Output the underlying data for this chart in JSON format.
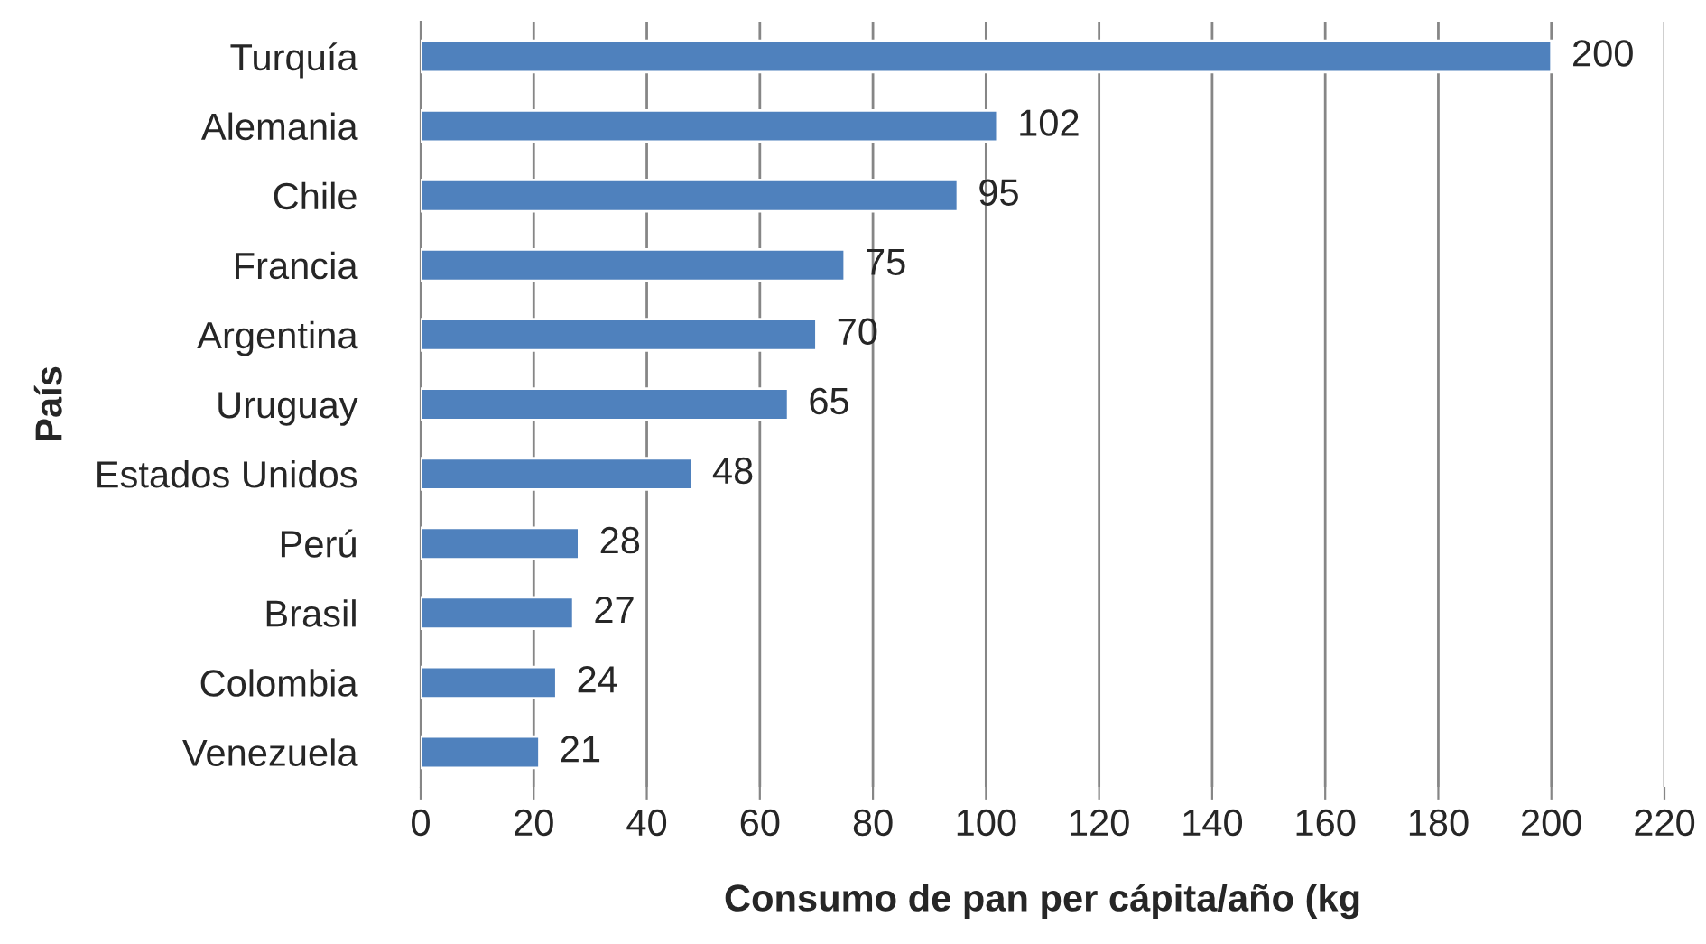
{
  "chart_data": {
    "type": "bar",
    "orientation": "horizontal",
    "xlabel": "Consumo de pan per cápita/año (kg",
    "ylabel": "País",
    "categories": [
      "Turquía",
      "Alemania",
      "Chile",
      "Francia",
      "Argentina",
      "Uruguay",
      "Estados Unidos",
      "Perú",
      "Brasil",
      "Colombia",
      "Venezuela"
    ],
    "values": [
      200,
      102,
      95,
      75,
      70,
      65,
      48,
      28,
      27,
      24,
      21
    ],
    "color": "#4f81bd",
    "xlim": [
      0,
      220
    ],
    "xticks": [
      0,
      20,
      40,
      60,
      80,
      100,
      120,
      140,
      160,
      180,
      200,
      220
    ],
    "grid": "x",
    "data_labels": true,
    "legend": false
  }
}
